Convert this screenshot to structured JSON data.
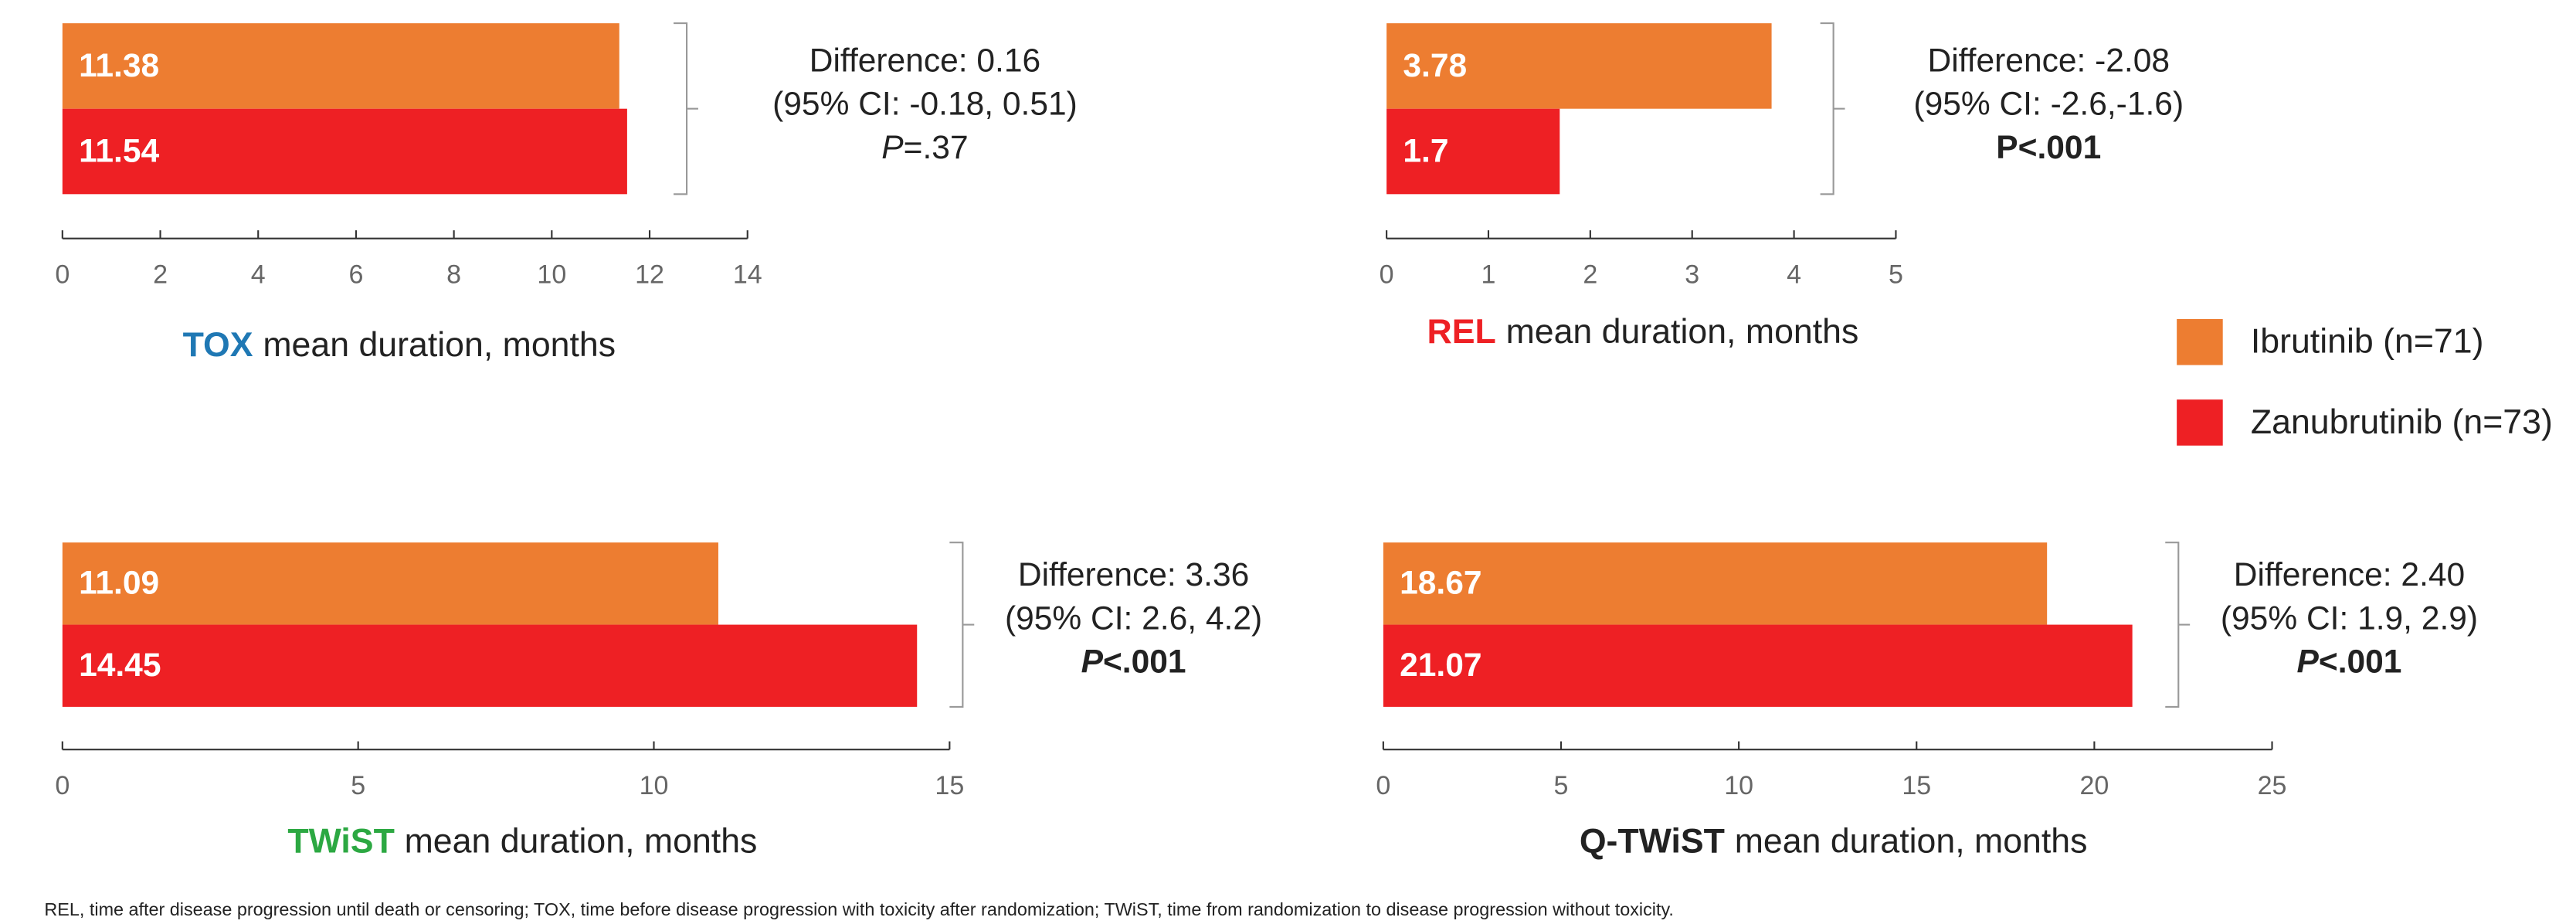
{
  "legend": [
    {
      "name": "Ibrutinib (n=71)",
      "color": "#ED7D31"
    },
    {
      "name": "Zanubrutinib (n=73)",
      "color": "#EE2024"
    }
  ],
  "footnote": "REL, time after disease progression until death or censoring; TOX, time before disease progression with toxicity after randomization; TWiST, time from randomization to disease progression without toxicity.",
  "chart_data": [
    {
      "type": "bar",
      "orientation": "horizontal",
      "values": [
        11.38,
        11.54
      ],
      "xlim": [
        0,
        14
      ],
      "xticks": [
        0,
        2,
        4,
        6,
        8,
        10,
        12,
        14
      ],
      "xlabel": [
        "TOX",
        "mean duration, months"
      ],
      "xlabel_color": "#1F78B4",
      "annotation": [
        "Difference: 0.16",
        "(95% CI: -0.18, 0.51)"
      ],
      "p": [
        "P",
        "=.37"
      ],
      "p_bold": false
    },
    {
      "type": "bar",
      "orientation": "horizontal",
      "values": [
        3.78,
        1.7
      ],
      "xlim": [
        0,
        5
      ],
      "xticks": [
        0,
        1,
        2,
        3,
        4,
        5
      ],
      "xlabel": [
        "REL",
        "mean duration, months"
      ],
      "xlabel_color": "#EE2024",
      "annotation": [
        "Difference: -2.08",
        "(95% CI: -2.6,-1.6)"
      ],
      "p": [
        "P",
        "<.001"
      ],
      "p_bold": true,
      "p_italic": false
    },
    {
      "type": "bar",
      "orientation": "horizontal",
      "values": [
        11.09,
        14.45
      ],
      "xlim": [
        0,
        15
      ],
      "xticks": [
        0,
        5,
        10,
        15
      ],
      "xlabel": [
        "TWiST",
        "mean duration, months"
      ],
      "xlabel_color": "#2CA842",
      "annotation": [
        "Difference: 3.36",
        "(95% CI: 2.6, 4.2)"
      ],
      "p": [
        "P",
        "<.001"
      ],
      "p_bold": true
    },
    {
      "type": "bar",
      "orientation": "horizontal",
      "values": [
        18.67,
        21.07
      ],
      "xlim": [
        0,
        25
      ],
      "xticks": [
        0,
        5,
        10,
        15,
        20,
        25
      ],
      "xlabel": [
        "Q-TWiST",
        "mean duration, months"
      ],
      "xlabel_color": "#222222",
      "annotation": [
        "Difference: 2.40",
        "(95% CI: 1.9, 2.9)"
      ],
      "p": [
        "P",
        "<.001"
      ],
      "p_bold": true
    }
  ]
}
